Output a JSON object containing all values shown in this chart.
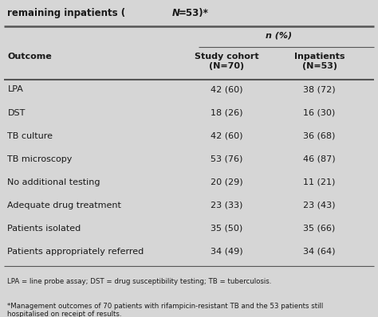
{
  "title": "remaining inpatients (N=53)*",
  "header_n_pct": "n (%)",
  "col1_header": "Outcome",
  "col2_header": "Study cohort\n(N=70)",
  "col3_header": "Inpatients\n(N=53)",
  "rows": [
    [
      "LPA",
      "42 (60)",
      "38 (72)"
    ],
    [
      "DST",
      "18 (26)",
      "16 (30)"
    ],
    [
      "TB culture",
      "42 (60)",
      "36 (68)"
    ],
    [
      "TB microscopy",
      "53 (76)",
      "46 (87)"
    ],
    [
      "No additional testing",
      "20 (29)",
      "11 (21)"
    ],
    [
      "Adequate drug treatment",
      "23 (33)",
      "23 (43)"
    ],
    [
      "Patients isolated",
      "35 (50)",
      "35 (66)"
    ],
    [
      "Patients appropriately referred",
      "34 (49)",
      "34 (64)"
    ]
  ],
  "footnote1": "LPA = line probe assay; DST = drug susceptibility testing; TB = tuberculosis.",
  "footnote2": "*Management outcomes of 70 patients with rifampicin-resistant TB and the 53 patients still\nhospitalised on receipt of results.",
  "bg_color": "#d6d6d6",
  "text_color": "#1a1a1a",
  "line_color": "#555555"
}
